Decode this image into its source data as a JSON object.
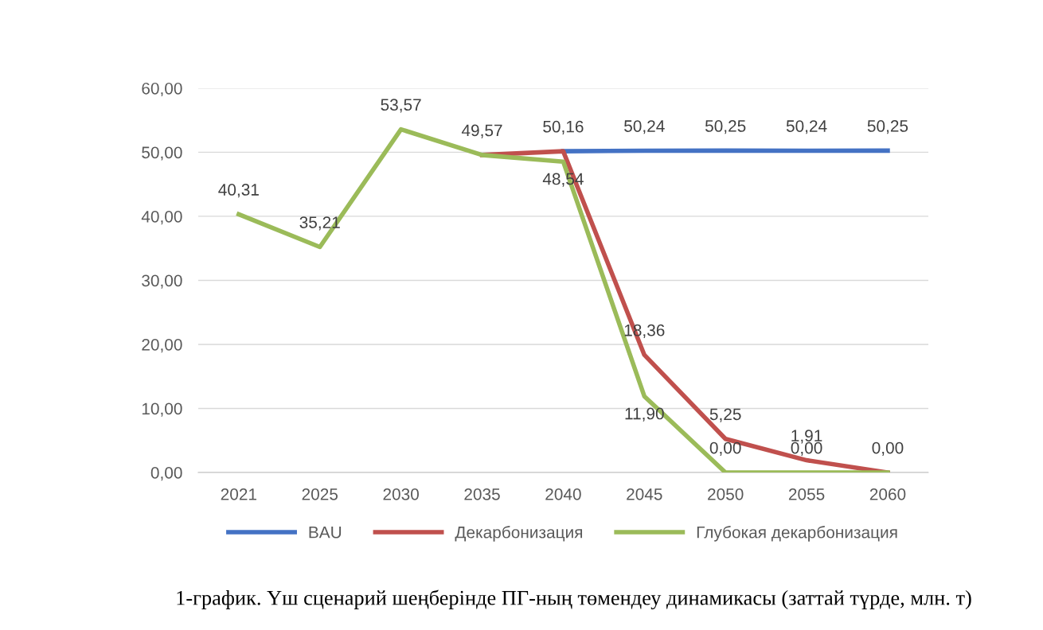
{
  "chart_data": {
    "type": "line",
    "categories": [
      "2021",
      "2025",
      "2030",
      "2035",
      "2040",
      "2045",
      "2050",
      "2055",
      "2060"
    ],
    "series": [
      {
        "name": "BAU",
        "color": "#4472c4",
        "values": [
          null,
          null,
          null,
          null,
          50.16,
          50.24,
          50.25,
          50.24,
          50.25
        ],
        "value_labels": [
          null,
          null,
          null,
          null,
          "50,16",
          "50,24",
          "50,25",
          "50,24",
          "50,25"
        ]
      },
      {
        "name": "Декарбонизация",
        "color": "#c0504d",
        "values": [
          null,
          null,
          null,
          49.57,
          50.16,
          18.36,
          5.25,
          1.91,
          0.0
        ],
        "value_labels": [
          null,
          null,
          null,
          null,
          null,
          "18,36",
          "5,25",
          "1,91",
          "0,00"
        ]
      },
      {
        "name": "Глубокая декарбонизация",
        "color": "#9bbb59",
        "values": [
          40.31,
          35.21,
          53.57,
          49.57,
          48.54,
          11.9,
          0.0,
          0.0,
          0.0
        ],
        "value_labels": [
          "40,31",
          "35,21",
          "53,57",
          "49,57",
          "48,54",
          "11,90",
          "0,00",
          "0,00",
          null
        ]
      }
    ],
    "ylim": [
      0,
      60
    ],
    "yticks": [
      {
        "value": 0,
        "label": "0,00"
      },
      {
        "value": 10,
        "label": "10,00"
      },
      {
        "value": 20,
        "label": "20,00"
      },
      {
        "value": 30,
        "label": "30,00"
      },
      {
        "value": 40,
        "label": "40,00"
      },
      {
        "value": 50,
        "label": "50,00"
      },
      {
        "value": 60,
        "label": "60,00"
      }
    ],
    "grid": "y",
    "legend": "bottom",
    "marker": "none",
    "line_style": "solid",
    "annotations": [
      "1-график. Үш сценарий шеңберінде ПГ-ның төмендеу динамикасы (заттай түрде, млн. т)"
    ]
  }
}
